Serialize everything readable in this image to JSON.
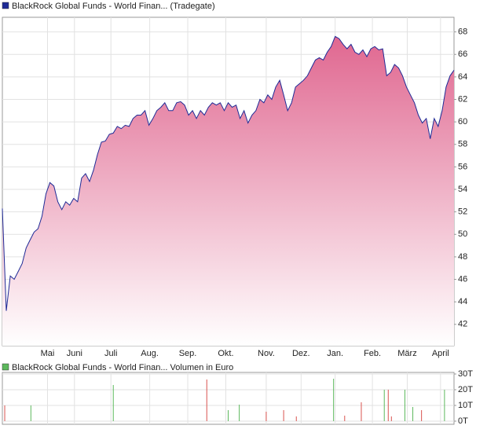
{
  "chart_data": [
    {
      "type": "area",
      "series": [
        {
          "name": "BlackRock Global Funds - World Finan... (Tradegate)",
          "color": "#1e2a96",
          "fill": "#e06790",
          "values": [
            52.3,
            43.2,
            46.3,
            46.0,
            46.7,
            47.4,
            48.8,
            49.5,
            50.2,
            50.5,
            51.6,
            53.6,
            54.6,
            54.3,
            52.9,
            52.2,
            52.9,
            52.6,
            53.2,
            52.9,
            55.0,
            55.4,
            54.7,
            55.7,
            57.1,
            58.2,
            58.3,
            58.9,
            59.0,
            59.6,
            59.4,
            59.7,
            59.6,
            60.3,
            60.6,
            60.6,
            61.0,
            59.7,
            60.3,
            61.0,
            61.3,
            61.7,
            61.0,
            61.0,
            61.7,
            61.8,
            61.5,
            60.6,
            61.0,
            60.3,
            61.0,
            60.6,
            61.3,
            61.7,
            61.5,
            61.7,
            61.0,
            61.7,
            61.3,
            61.5,
            60.3,
            61.0,
            59.9,
            60.6,
            61.0,
            62.0,
            61.7,
            62.4,
            62.0,
            63.1,
            63.7,
            62.4,
            61.0,
            61.7,
            63.1,
            63.4,
            63.7,
            64.1,
            64.8,
            65.5,
            65.7,
            65.5,
            66.2,
            66.7,
            67.6,
            67.4,
            66.9,
            66.5,
            66.9,
            66.2,
            66.0,
            66.4,
            65.8,
            66.5,
            66.7,
            66.4,
            66.5,
            64.1,
            64.4,
            65.1,
            64.8,
            64.1,
            63.1,
            62.4,
            61.7,
            60.6,
            59.9,
            60.3,
            58.5,
            60.3,
            59.6,
            61.0,
            63.1,
            64.1,
            64.6
          ]
        }
      ],
      "xlim": [
        0,
        114
      ],
      "xticks": [
        {
          "value": 11.4,
          "label": "Mai"
        },
        {
          "value": 18.2,
          "label": "Juni"
        },
        {
          "value": 27.4,
          "label": "Juli"
        },
        {
          "value": 37.2,
          "label": "Aug."
        },
        {
          "value": 46.8,
          "label": "Sep."
        },
        {
          "value": 56.4,
          "label": "Okt."
        },
        {
          "value": 66.6,
          "label": "Nov."
        },
        {
          "value": 75.4,
          "label": "Dez."
        },
        {
          "value": 84,
          "label": "Jan."
        },
        {
          "value": 93.4,
          "label": "Feb."
        },
        {
          "value": 102.2,
          "label": "März"
        },
        {
          "value": 110.6,
          "label": "April"
        }
      ],
      "ylim": [
        40.1,
        69.3
      ],
      "yticks": [
        42,
        44,
        46,
        48,
        50,
        52,
        54,
        56,
        58,
        60,
        62,
        64,
        66,
        68
      ],
      "grid": true
    },
    {
      "type": "bar",
      "title": "BlackRock Global Funds - World Finan... Volumen in Euro",
      "color": "#5cb85c",
      "x": [
        0.6,
        7.2,
        28,
        51.6,
        57,
        59.8,
        66.6,
        71,
        74.2,
        83.6,
        86.4,
        90.6,
        96.4,
        97.4,
        98.2,
        101.6,
        103.6,
        105.8,
        111.6
      ],
      "values": [
        10000,
        10000,
        23000,
        26500,
        7000,
        10500,
        6000,
        7000,
        3000,
        27000,
        3500,
        12000,
        20000,
        20000,
        3000,
        20000,
        9000,
        7000,
        20000
      ],
      "colors": [
        "#d9534f",
        "#5cb85c",
        "#5cb85c",
        "#d9534f",
        "#5cb85c",
        "#5cb85c",
        "#d9534f",
        "#d9534f",
        "#d9534f",
        "#5cb85c",
        "#d9534f",
        "#d9534f",
        "#5cb85c",
        "#d9534f",
        "#d9534f",
        "#5cb85c",
        "#5cb85c",
        "#d9534f",
        "#5cb85c"
      ],
      "xlim": [
        0,
        114
      ],
      "ylim": [
        -2000,
        31000
      ],
      "yticks": [
        {
          "value": 0,
          "label": "0T"
        },
        {
          "value": 10000,
          "label": "10T"
        },
        {
          "value": 20000,
          "label": "20T"
        },
        {
          "value": 30000,
          "label": "30T"
        }
      ],
      "grid": true
    }
  ]
}
